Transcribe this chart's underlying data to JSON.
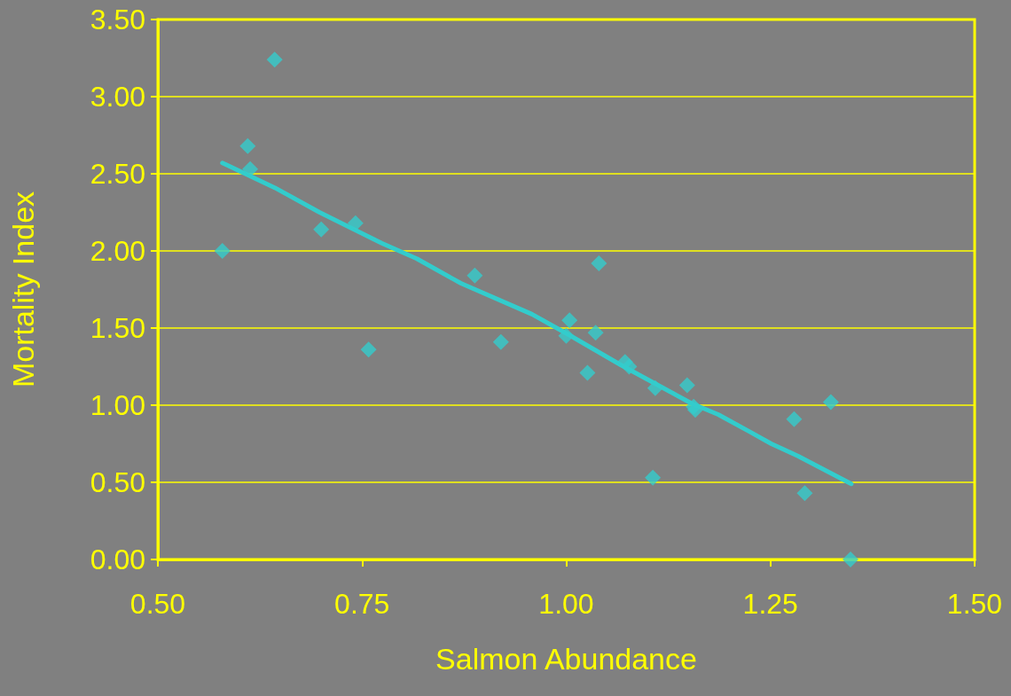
{
  "chart_data": {
    "type": "scatter",
    "xlabel": "Salmon Abundance",
    "ylabel": "Mortality Index",
    "xlim": [
      0.5,
      1.5
    ],
    "xticks": [
      {
        "value": 0.5,
        "label": "0.50"
      },
      {
        "value": 0.75,
        "label": "0.75"
      },
      {
        "value": 1,
        "label": "1.00"
      },
      {
        "value": 1.25,
        "label": "1.25"
      },
      {
        "value": 1.5,
        "label": "1.50"
      }
    ],
    "ylim": [
      0,
      3.5
    ],
    "yticks": [
      {
        "value": 0,
        "label": "0.00"
      },
      {
        "value": 0.5,
        "label": "0.50"
      },
      {
        "value": 1,
        "label": "1.00"
      },
      {
        "value": 1.5,
        "label": "1.50"
      },
      {
        "value": 2,
        "label": "2.00"
      },
      {
        "value": 2.5,
        "label": "2.50"
      },
      {
        "value": 3,
        "label": "3.00"
      },
      {
        "value": 3.5,
        "label": "3.50"
      }
    ],
    "grid": "y",
    "series": [
      {
        "color": "#33cccc",
        "marker": "diamond",
        "x": [
          0.579,
          0.61,
          0.613,
          0.643,
          0.7,
          0.742,
          0.758,
          0.888,
          0.92,
          1.004,
          1.0,
          1.036,
          1.04,
          1.026,
          1.072,
          1.077,
          1.109,
          1.106,
          1.148,
          1.156,
          1.158,
          1.279,
          1.292,
          1.324,
          1.348
        ],
        "values": [
          2.0,
          2.68,
          2.53,
          3.24,
          2.14,
          2.18,
          1.36,
          1.84,
          1.41,
          1.55,
          1.45,
          1.47,
          1.92,
          1.21,
          1.28,
          1.25,
          1.11,
          0.53,
          1.13,
          0.99,
          0.97,
          0.91,
          0.43,
          1.02,
          0.0
        ]
      },
      {
        "type": "line",
        "color": "#33cccc",
        "marker": "none",
        "line_style": "solid",
        "x": [
          0.579,
          0.643,
          0.698,
          0.774,
          0.817,
          0.871,
          0.958,
          1.002,
          1.067,
          1.154,
          1.186,
          1.224,
          1.251,
          1.284,
          1.349
        ],
        "values": [
          2.57,
          2.41,
          2.25,
          2.05,
          1.95,
          1.79,
          1.59,
          1.46,
          1.26,
          1.01,
          0.94,
          0.83,
          0.75,
          0.67,
          0.49
        ]
      }
    ]
  }
}
